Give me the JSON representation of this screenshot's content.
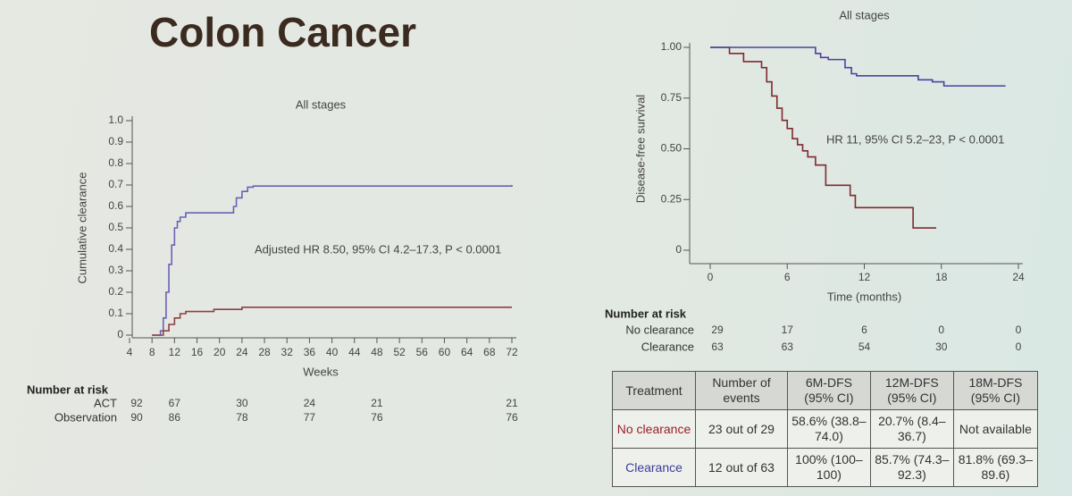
{
  "title": "Colon Cancer",
  "chart_data": [
    {
      "type": "step",
      "title": "All stages",
      "xlabel": "Weeks",
      "ylabel": "Cumulative clearance",
      "annotation": "Adjusted HR 8.50, 95% CI 4.2–17.3, P < 0.0001",
      "xlim": [
        4,
        72
      ],
      "xticks": [
        4,
        8,
        12,
        16,
        20,
        24,
        28,
        32,
        36,
        40,
        44,
        48,
        52,
        56,
        60,
        64,
        68,
        72
      ],
      "ylim": [
        0,
        1
      ],
      "yticks": [
        0,
        0.1,
        0.2,
        0.3,
        0.4,
        0.5,
        0.6,
        0.7,
        0.8,
        0.9,
        {
          "value": 1,
          "label": "1.0"
        }
      ],
      "series": [
        {
          "name": "ACT",
          "color": "#6a62b4",
          "x": [
            8,
            9.5,
            10,
            10.5,
            11,
            11.5,
            12,
            12.5,
            13,
            14,
            22,
            22.5,
            23,
            24,
            25,
            26,
            72
          ],
          "values": [
            0,
            0.02,
            0.08,
            0.2,
            0.33,
            0.42,
            0.5,
            0.53,
            0.55,
            0.57,
            0.57,
            0.6,
            0.64,
            0.67,
            0.69,
            0.695,
            0.7
          ]
        },
        {
          "name": "Observation",
          "color": "#8e3f45",
          "x": [
            8,
            10,
            11,
            12,
            13,
            14,
            18,
            19,
            22,
            24,
            72
          ],
          "values": [
            0,
            0.02,
            0.05,
            0.08,
            0.1,
            0.11,
            0.11,
            0.12,
            0.12,
            0.13,
            0.13
          ]
        }
      ],
      "risk_table": {
        "title": "Number at risk",
        "x": [
          4,
          12,
          24,
          36,
          48,
          72
        ],
        "rows": [
          [
            92,
            67,
            30,
            24,
            21,
            21
          ],
          [
            90,
            86,
            78,
            77,
            76,
            76
          ]
        ]
      }
    },
    {
      "type": "step",
      "title": "All stages",
      "xlabel": "Time (months)",
      "ylabel": "Disease-free survival",
      "annotation": "HR 11, 95% CI 5.2–23, P < 0.0001",
      "xlim": [
        0,
        24
      ],
      "xticks": [
        0,
        6,
        12,
        18,
        24
      ],
      "ylim": [
        0,
        1
      ],
      "yticks": [
        0,
        0.25,
        {
          "value": 0.5,
          "label": "0.50"
        },
        0.75,
        {
          "value": 1,
          "label": "1.00"
        }
      ],
      "series": [
        {
          "name": "No clearance",
          "color": "#7e2a30",
          "x": [
            0,
            1.5,
            2.6,
            4,
            4.4,
            4.8,
            5.2,
            5.6,
            6,
            6.4,
            6.8,
            7.2,
            7.6,
            8.2,
            9,
            10.9,
            11.3,
            15.8,
            17.6
          ],
          "values": [
            1,
            0.97,
            0.93,
            0.9,
            0.83,
            0.76,
            0.7,
            0.64,
            0.6,
            0.55,
            0.52,
            0.49,
            0.46,
            0.42,
            0.32,
            0.27,
            0.21,
            0.11,
            0.11
          ]
        },
        {
          "name": "Clearance",
          "color": "#4a42a0",
          "x": [
            0,
            8.2,
            8.6,
            9.2,
            10.5,
            11,
            11.4,
            13.5,
            16.2,
            17.3,
            18.2,
            23
          ],
          "values": [
            1,
            0.97,
            0.95,
            0.94,
            0.9,
            0.87,
            0.86,
            0.86,
            0.84,
            0.83,
            0.81,
            0.81
          ]
        }
      ],
      "risk_table": {
        "title": "Number at risk",
        "x": [
          0,
          6,
          12,
          18,
          24
        ],
        "rows": [
          [
            29,
            17,
            6,
            0,
            0
          ],
          [
            63,
            63,
            54,
            30,
            0
          ]
        ]
      }
    }
  ],
  "table": {
    "header": [
      "Treatment",
      "Number of events",
      "6M-DFS (95% CI)",
      "12M-DFS (95% CI)",
      "18M-DFS (95% CI)"
    ],
    "rows": [
      [
        "No clearance",
        "23 out of 29",
        "58.6% (38.8–74.0)",
        "20.7% (8.4–36.7)",
        "Not available"
      ],
      [
        "Clearance",
        "12 out of 63",
        "100% (100–100)",
        "85.7% (74.3–92.3)",
        "81.8% (69.3–89.6)"
      ]
    ]
  }
}
